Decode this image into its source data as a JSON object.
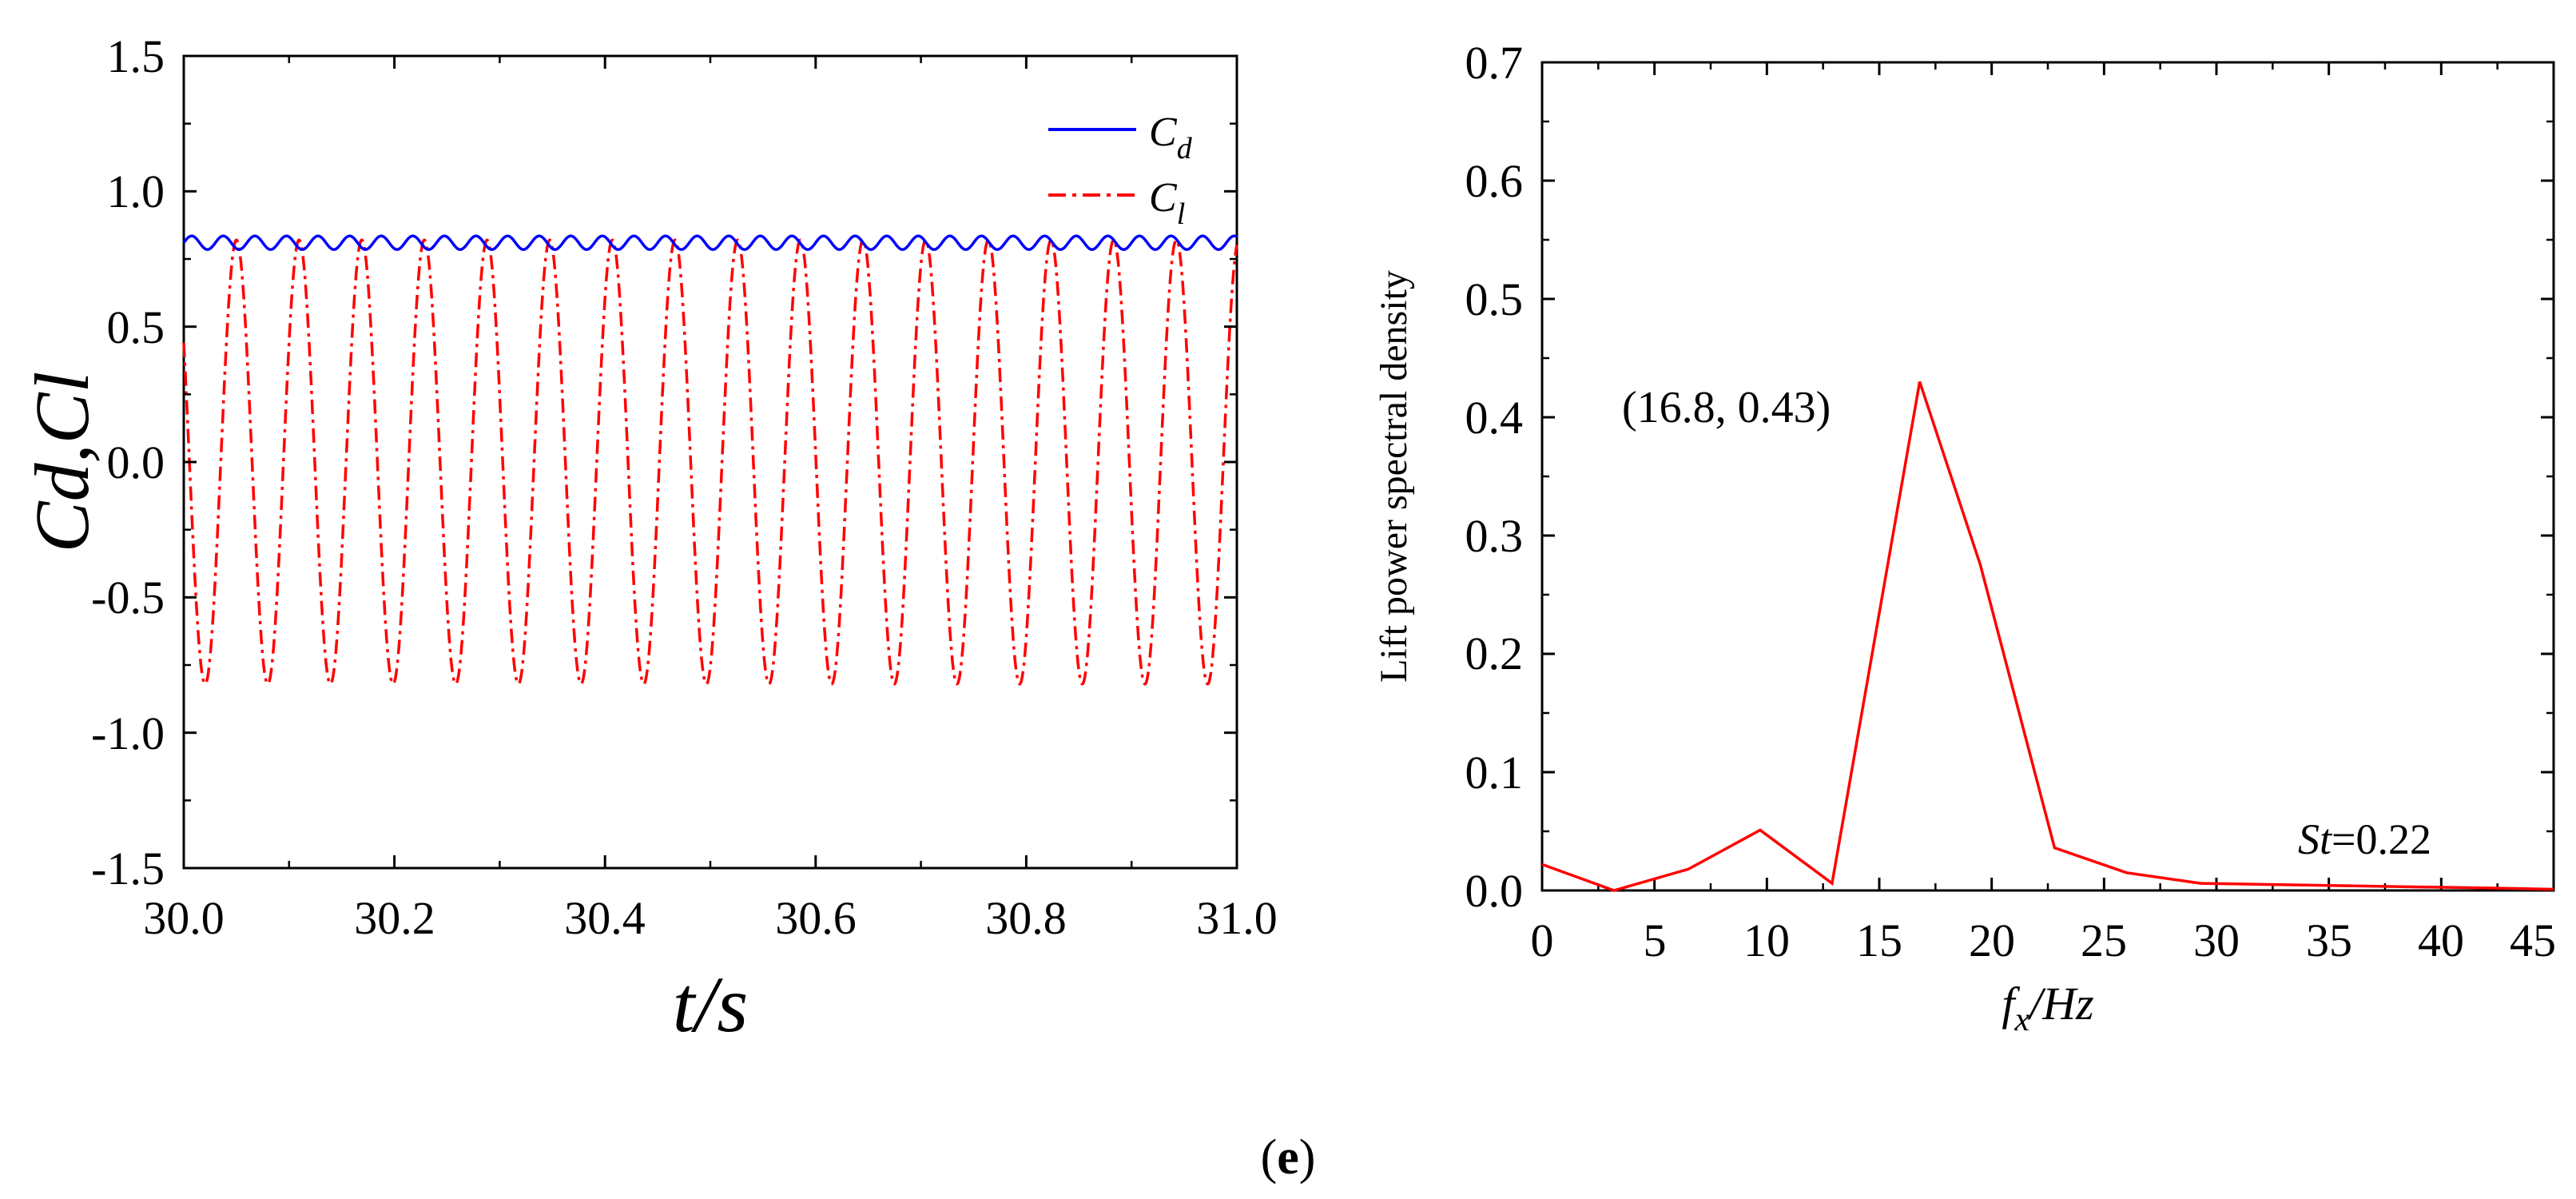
{
  "panel_label": "e",
  "chart_data": [
    {
      "type": "line",
      "xlabel": "t/s",
      "ylabel": "Cd,Cl",
      "xlim": [
        30.0,
        31.0
      ],
      "ylim": [
        -1.5,
        1.5
      ],
      "xticks": [
        "30.0",
        "30.2",
        "30.4",
        "30.6",
        "30.8",
        "31.0"
      ],
      "yticks": [
        "-1.5",
        "-1.0",
        "-0.5",
        "0.0",
        "0.5",
        "1.0",
        "1.5"
      ],
      "legend": {
        "placement": "top-right",
        "entries": [
          {
            "base": "C",
            "sub": "d"
          },
          {
            "base": "C",
            "sub": "l"
          }
        ]
      },
      "series": [
        {
          "name": "Cd",
          "color": "#0000ff",
          "style": "solid",
          "description": "mean 0.81, amplitude 0.025, period 0.030 s",
          "x": [
            30.0,
            31.0
          ],
          "mean": 0.81,
          "amplitude": 0.025,
          "period": 0.03
        },
        {
          "name": "Cl",
          "color": "#ff0000",
          "style": "dash-dot",
          "description": "amplitude 0.82, period 0.0595 s",
          "x": [
            30.0,
            31.0
          ],
          "mean": 0.0,
          "amplitude": 0.82,
          "period": 0.0595
        }
      ]
    },
    {
      "type": "line",
      "ylabel": "Lift power spectral density",
      "xlabel_base": "f",
      "xlabel_sub": "x",
      "xlabel_rest": "/Hz",
      "xlim": [
        0,
        45
      ],
      "ylim": [
        0.0,
        0.7
      ],
      "xticks": [
        "0",
        "5",
        "10",
        "15",
        "20",
        "25",
        "30",
        "35",
        "40",
        "45"
      ],
      "yticks": [
        "0.0",
        "0.1",
        "0.2",
        "0.3",
        "0.4",
        "0.5",
        "0.6",
        "0.7"
      ],
      "annotation_peak": "(16.8, 0.43)",
      "annotation_st_base": "St",
      "annotation_st_rest": "=0.22",
      "series": [
        {
          "name": "Lift PSD",
          "color": "#ff0000",
          "x": [
            0,
            3.2,
            6.5,
            9.7,
            12.9,
            16.8,
            19.5,
            22.8,
            26.0,
            29.3,
            32.5,
            35.8,
            39.0,
            42.3,
            45.0
          ],
          "y": [
            0.022,
            0.0,
            0.018,
            0.051,
            0.006,
            0.43,
            0.275,
            0.036,
            0.015,
            0.006,
            0.005,
            0.004,
            0.003,
            0.002,
            0.001
          ]
        }
      ]
    }
  ]
}
